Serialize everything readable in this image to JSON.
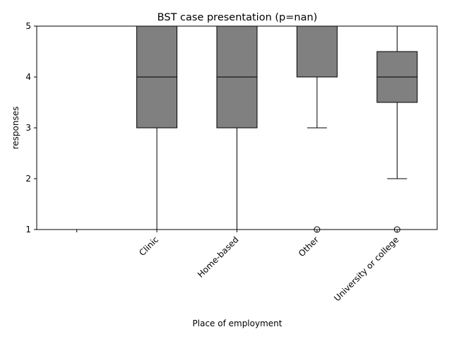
{
  "chart_data": {
    "type": "box",
    "title": "BST case presentation (p=nan)",
    "xlabel": "Place of employment",
    "ylabel": "responses",
    "ylim": [
      1,
      5
    ],
    "yticks": [
      1,
      2,
      3,
      4,
      5
    ],
    "grid": false,
    "categories": [
      "",
      "Clinic",
      "Home-based",
      "Other",
      "University or college"
    ],
    "boxes": [
      {
        "category": "",
        "empty": true
      },
      {
        "category": "Clinic",
        "whisker_low": 1,
        "q1": 3,
        "median": 4,
        "q3": 5,
        "whisker_high": 5,
        "outliers": []
      },
      {
        "category": "Home-based",
        "whisker_low": 1,
        "q1": 3,
        "median": 4,
        "q3": 5,
        "whisker_high": 5,
        "outliers": []
      },
      {
        "category": "Other",
        "whisker_low": 3,
        "q1": 4,
        "median": 5,
        "q3": 5,
        "whisker_high": 5,
        "outliers": [
          1
        ]
      },
      {
        "category": "University or college",
        "whisker_low": 2,
        "q1": 3.5,
        "median": 4,
        "q3": 4.5,
        "whisker_high": 5,
        "outliers": [
          1
        ]
      }
    ],
    "box_color": "#808080",
    "line_color": "#000000"
  }
}
